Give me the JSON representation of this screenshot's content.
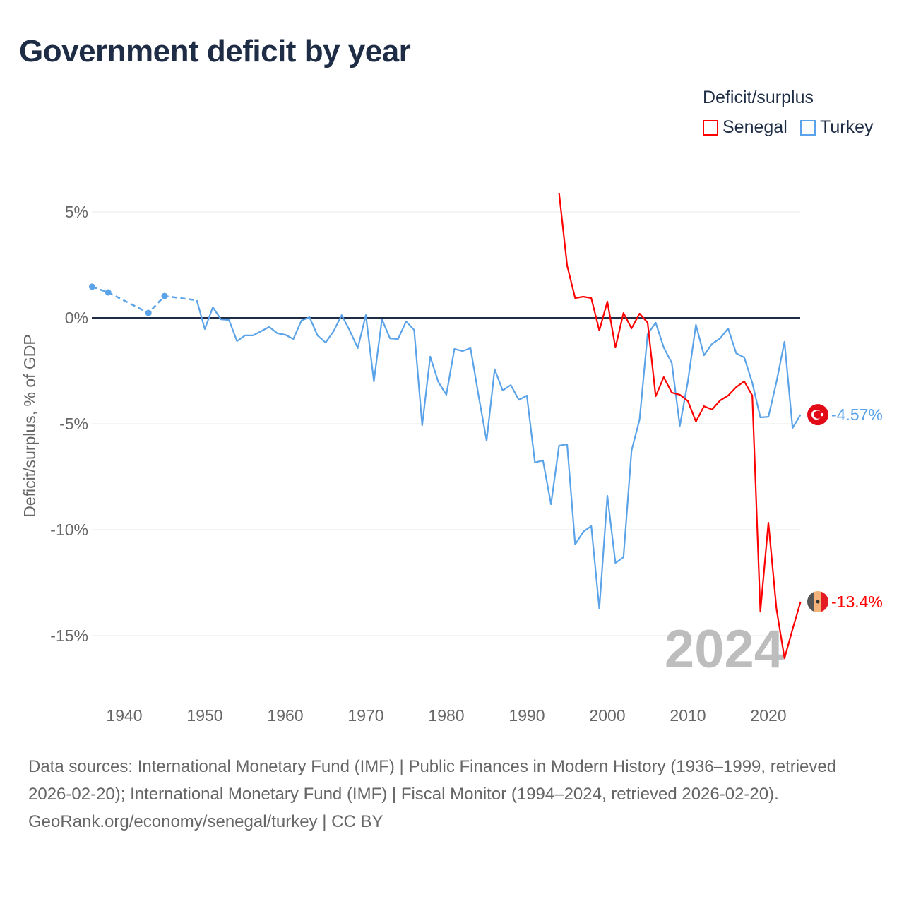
{
  "title": "Government deficit by year",
  "legend": {
    "title": "Deficit/surplus",
    "items": [
      {
        "name": "Senegal",
        "color": "#ff0000"
      },
      {
        "name": "Turkey",
        "color": "#5ba3e8"
      }
    ]
  },
  "footer": {
    "sources": "Data sources: International Monetary Fund (IMF) | Public Finances in Modern History (1936–1999, retrieved 2026-02-20); International Monetary Fund (IMF) | Fiscal Monitor (1994–2024, retrieved 2026-02-20).",
    "credit": "GeoRank.org/economy/senegal/turkey | CC BY"
  },
  "chart_data": {
    "type": "line",
    "title": "Government deficit by year",
    "ylabel": "Deficit/surplus, % of GDP",
    "xlabel": "",
    "xlim": [
      1936,
      2024
    ],
    "ylim": [
      -17,
      7
    ],
    "x_ticks": [
      1940,
      1950,
      1960,
      1970,
      1980,
      1990,
      2000,
      2010,
      2020
    ],
    "x_tick_labels": [
      "1940",
      "1950",
      "1960",
      "1970",
      "1980",
      "1990",
      "2000",
      "2010",
      "2020"
    ],
    "y_ticks": [
      5,
      0,
      -5,
      -10,
      -15
    ],
    "y_tick_labels": [
      "5%",
      "0%",
      "-5%",
      "-10%",
      "-15%"
    ],
    "current_year_label": "2024",
    "series": [
      {
        "name": "Turkey",
        "color": "#5ba3e8",
        "end_label": "-4.57%",
        "flag": "turkey-flag",
        "dashed_points": [
          [
            1936,
            1.47
          ],
          [
            1938,
            1.2
          ],
          [
            1943,
            0.23
          ],
          [
            1945,
            1.03
          ],
          [
            1949,
            0.83
          ]
        ],
        "points": [
          [
            1949,
            0.83
          ],
          [
            1950,
            -0.53
          ],
          [
            1951,
            0.5
          ],
          [
            1952,
            -0.07
          ],
          [
            1953,
            -0.1
          ],
          [
            1954,
            -1.1
          ],
          [
            1955,
            -0.83
          ],
          [
            1956,
            -0.83
          ],
          [
            1957,
            -0.63
          ],
          [
            1958,
            -0.43
          ],
          [
            1959,
            -0.73
          ],
          [
            1960,
            -0.8
          ],
          [
            1961,
            -1.0
          ],
          [
            1962,
            -0.13
          ],
          [
            1963,
            0.03
          ],
          [
            1964,
            -0.83
          ],
          [
            1965,
            -1.17
          ],
          [
            1966,
            -0.63
          ],
          [
            1967,
            0.13
          ],
          [
            1968,
            -0.6
          ],
          [
            1969,
            -1.43
          ],
          [
            1970,
            0.13
          ],
          [
            1971,
            -3.0
          ],
          [
            1972,
            -0.07
          ],
          [
            1973,
            -0.97
          ],
          [
            1974,
            -1.0
          ],
          [
            1975,
            -0.17
          ],
          [
            1976,
            -0.57
          ],
          [
            1977,
            -5.07
          ],
          [
            1978,
            -1.83
          ],
          [
            1979,
            -3.03
          ],
          [
            1980,
            -3.63
          ],
          [
            1981,
            -1.47
          ],
          [
            1982,
            -1.57
          ],
          [
            1983,
            -1.43
          ],
          [
            1984,
            -3.67
          ],
          [
            1985,
            -5.8
          ],
          [
            1986,
            -2.43
          ],
          [
            1987,
            -3.43
          ],
          [
            1988,
            -3.17
          ],
          [
            1989,
            -3.87
          ],
          [
            1990,
            -3.67
          ],
          [
            1991,
            -6.83
          ],
          [
            1992,
            -6.73
          ],
          [
            1993,
            -8.8
          ],
          [
            1994,
            -6.03
          ],
          [
            1995,
            -5.97
          ],
          [
            1996,
            -10.7
          ],
          [
            1997,
            -10.1
          ],
          [
            1998,
            -9.83
          ],
          [
            1999,
            -13.73
          ],
          [
            2000,
            -8.4
          ],
          [
            2001,
            -11.57
          ],
          [
            2002,
            -11.3
          ],
          [
            2003,
            -6.27
          ],
          [
            2004,
            -4.8
          ],
          [
            2005,
            -0.77
          ],
          [
            2006,
            -0.23
          ],
          [
            2007,
            -1.4
          ],
          [
            2008,
            -2.13
          ],
          [
            2009,
            -5.1
          ],
          [
            2010,
            -3.0
          ],
          [
            2011,
            -0.33
          ],
          [
            2012,
            -1.77
          ],
          [
            2013,
            -1.23
          ],
          [
            2014,
            -0.97
          ],
          [
            2015,
            -0.5
          ],
          [
            2016,
            -1.67
          ],
          [
            2017,
            -1.87
          ],
          [
            2018,
            -3.07
          ],
          [
            2019,
            -4.7
          ],
          [
            2020,
            -4.67
          ],
          [
            2021,
            -3.03
          ],
          [
            2022,
            -1.13
          ],
          [
            2023,
            -5.2
          ],
          [
            2024,
            -4.57
          ]
        ]
      },
      {
        "name": "Senegal",
        "color": "#ff0000",
        "end_label": "-13.4%",
        "flag": "senegal-flag",
        "dashed_points": [],
        "points": [
          [
            1994,
            5.9
          ],
          [
            1995,
            2.47
          ],
          [
            1996,
            0.93
          ],
          [
            1997,
            1.0
          ],
          [
            1998,
            0.93
          ],
          [
            1999,
            -0.6
          ],
          [
            2000,
            0.77
          ],
          [
            2001,
            -1.4
          ],
          [
            2002,
            0.23
          ],
          [
            2003,
            -0.5
          ],
          [
            2004,
            0.2
          ],
          [
            2005,
            -0.23
          ],
          [
            2006,
            -3.7
          ],
          [
            2007,
            -2.8
          ],
          [
            2008,
            -3.53
          ],
          [
            2009,
            -3.63
          ],
          [
            2010,
            -3.93
          ],
          [
            2011,
            -4.9
          ],
          [
            2012,
            -4.17
          ],
          [
            2013,
            -4.33
          ],
          [
            2014,
            -3.9
          ],
          [
            2015,
            -3.67
          ],
          [
            2016,
            -3.27
          ],
          [
            2017,
            -3.0
          ],
          [
            2018,
            -3.67
          ],
          [
            2019,
            -13.87
          ],
          [
            2020,
            -9.67
          ],
          [
            2021,
            -13.73
          ],
          [
            2022,
            -16.07
          ],
          [
            2023,
            -14.7
          ],
          [
            2024,
            -13.4
          ]
        ]
      }
    ]
  }
}
